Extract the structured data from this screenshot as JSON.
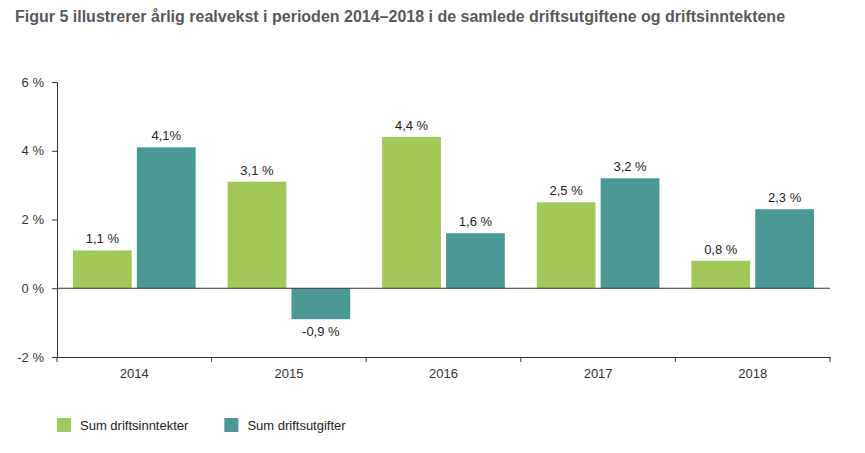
{
  "chart_data": {
    "type": "bar",
    "title": "Figur 5 illustrerer årlig realvekst i perioden 2014–2018 i de samlede driftsutgiftene og driftsinntektene",
    "categories": [
      "2014",
      "2015",
      "2016",
      "2017",
      "2018"
    ],
    "series": [
      {
        "name": "Sum driftsinntekter",
        "color": "#a2c85a",
        "values": [
          1.1,
          3.1,
          4.4,
          2.5,
          0.8
        ],
        "value_labels": [
          "1,1 %",
          "3,1 %",
          "4,4 %",
          "2,5 %",
          "0,8 %"
        ]
      },
      {
        "name": "Sum driftsutgifter",
        "color": "#4c9894",
        "values": [
          4.1,
          -0.9,
          1.6,
          3.2,
          2.3
        ],
        "value_labels": [
          "4,1%",
          "-0,9 %",
          "1,6 %",
          "3,2 %",
          "2,3 %"
        ]
      }
    ],
    "ylim": [
      -2,
      6
    ],
    "yticks": [
      {
        "value": -2,
        "label": "-2 %"
      },
      {
        "value": 0,
        "label": "0 %"
      },
      {
        "value": 2,
        "label": "2 %"
      },
      {
        "value": 4,
        "label": "4 %"
      },
      {
        "value": 6,
        "label": "6 %"
      }
    ],
    "grid": false,
    "data_labels": true,
    "legend": "bottom-left"
  }
}
